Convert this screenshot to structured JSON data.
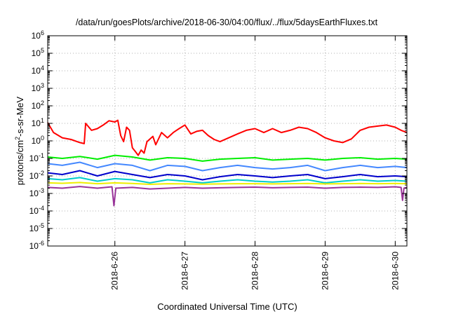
{
  "chart_data": {
    "type": "line",
    "title": "/data/run/goesPlots/archive/2018-06-30/04:00/flux/../flux/5daysEarthFluxes.txt",
    "xlabel": "Coordinated Universal Time (UTC)",
    "ylabel": {
      "base": "protons/cm",
      "sup": "2",
      "tail": "-s-sr-MeV"
    },
    "yscale": "log",
    "ylim": [
      1e-06,
      1000000.0
    ],
    "y_ticks": [
      {
        "base": "10",
        "exp": "-6"
      },
      {
        "base": "10",
        "exp": "-5"
      },
      {
        "base": "10",
        "exp": "-4"
      },
      {
        "base": "10",
        "exp": "-3"
      },
      {
        "base": "10",
        "exp": "-2"
      },
      {
        "base": "10",
        "exp": "-1"
      },
      {
        "base": "10",
        "exp": "0"
      },
      {
        "base": "10",
        "exp": "1"
      },
      {
        "base": "10",
        "exp": "2"
      },
      {
        "base": "10",
        "exp": "3"
      },
      {
        "base": "10",
        "exp": "4"
      },
      {
        "base": "10",
        "exp": "5"
      },
      {
        "base": "10",
        "exp": "6"
      }
    ],
    "xlim": [
      "2018-06-25 01:00",
      "2018-06-30 04:00"
    ],
    "x_ticks": [
      "2018-6-26",
      "2018-6-27",
      "2018-6-28",
      "2018-6-29",
      "2018-6-30"
    ],
    "grid": true,
    "series": [
      {
        "color": "#ff0000",
        "x": [
          "2018-06-25 01:00",
          "2018-06-25 03:00",
          "2018-06-25 06:00",
          "2018-06-25 09:00",
          "2018-06-25 12:00",
          "2018-06-25 13:30",
          "2018-06-25 14:00",
          "2018-06-25 16:00",
          "2018-06-25 18:00",
          "2018-06-25 20:00",
          "2018-06-25 22:00",
          "2018-06-26 00:00",
          "2018-06-26 01:00",
          "2018-06-26 02:00",
          "2018-06-26 03:00",
          "2018-06-26 04:00",
          "2018-06-26 05:00",
          "2018-06-26 06:00",
          "2018-06-26 07:00",
          "2018-06-26 08:00",
          "2018-06-26 09:00",
          "2018-06-26 10:00",
          "2018-06-26 11:00",
          "2018-06-26 13:00",
          "2018-06-26 14:00",
          "2018-06-26 16:00",
          "2018-06-26 18:00",
          "2018-06-26 20:00",
          "2018-06-26 22:00",
          "2018-06-27 00:00",
          "2018-06-27 02:00",
          "2018-06-27 04:00",
          "2018-06-27 06:00",
          "2018-06-27 08:00",
          "2018-06-27 10:00",
          "2018-06-27 12:00",
          "2018-06-27 15:00",
          "2018-06-27 18:00",
          "2018-06-27 21:00",
          "2018-06-28 00:00",
          "2018-06-28 03:00",
          "2018-06-28 06:00",
          "2018-06-28 09:00",
          "2018-06-28 12:00",
          "2018-06-28 15:00",
          "2018-06-28 18:00",
          "2018-06-28 21:00",
          "2018-06-29 00:00",
          "2018-06-29 03:00",
          "2018-06-29 06:00",
          "2018-06-29 09:00",
          "2018-06-29 12:00",
          "2018-06-29 15:00",
          "2018-06-29 18:00",
          "2018-06-29 21:00",
          "2018-06-30 00:00",
          "2018-06-30 02:00",
          "2018-06-30 04:00"
        ],
        "y": [
          11,
          3,
          1.5,
          1.2,
          0.8,
          0.7,
          10,
          4,
          5,
          8,
          14,
          12,
          15,
          2,
          0.9,
          6,
          4,
          0.4,
          0.25,
          0.15,
          0.3,
          0.2,
          0.9,
          1.8,
          0.6,
          3,
          1.5,
          3,
          5,
          8,
          2.5,
          3.5,
          4,
          2,
          1.2,
          0.9,
          1.5,
          2.5,
          4,
          5,
          3,
          5,
          3,
          4,
          6,
          5,
          3,
          1.5,
          1,
          0.8,
          1.3,
          4,
          6,
          7,
          8,
          6,
          4,
          3
        ]
      },
      {
        "color": "#00ee00",
        "x": [
          "2018-06-25 01:00",
          "2018-06-25 06:00",
          "2018-06-25 12:00",
          "2018-06-25 18:00",
          "2018-06-26 00:00",
          "2018-06-26 06:00",
          "2018-06-26 12:00",
          "2018-06-26 18:00",
          "2018-06-27 00:00",
          "2018-06-27 06:00",
          "2018-06-27 12:00",
          "2018-06-27 18:00",
          "2018-06-28 00:00",
          "2018-06-28 06:00",
          "2018-06-28 12:00",
          "2018-06-28 18:00",
          "2018-06-29 00:00",
          "2018-06-29 06:00",
          "2018-06-29 12:00",
          "2018-06-29 18:00",
          "2018-06-30 00:00",
          "2018-06-30 04:00"
        ],
        "y": [
          0.12,
          0.1,
          0.13,
          0.09,
          0.15,
          0.12,
          0.08,
          0.11,
          0.1,
          0.07,
          0.09,
          0.1,
          0.11,
          0.08,
          0.09,
          0.1,
          0.08,
          0.1,
          0.11,
          0.09,
          0.1,
          0.09
        ]
      },
      {
        "color": "#4488ff",
        "x": [
          "2018-06-25 01:00",
          "2018-06-25 06:00",
          "2018-06-25 12:00",
          "2018-06-25 18:00",
          "2018-06-26 00:00",
          "2018-06-26 06:00",
          "2018-06-26 12:00",
          "2018-06-26 18:00",
          "2018-06-27 00:00",
          "2018-06-27 06:00",
          "2018-06-27 12:00",
          "2018-06-27 18:00",
          "2018-06-28 00:00",
          "2018-06-28 06:00",
          "2018-06-28 12:00",
          "2018-06-28 18:00",
          "2018-06-29 00:00",
          "2018-06-29 06:00",
          "2018-06-29 12:00",
          "2018-06-29 18:00",
          "2018-06-30 00:00",
          "2018-06-30 04:00"
        ],
        "y": [
          0.05,
          0.04,
          0.06,
          0.03,
          0.05,
          0.04,
          0.02,
          0.04,
          0.035,
          0.02,
          0.03,
          0.04,
          0.03,
          0.025,
          0.03,
          0.04,
          0.02,
          0.03,
          0.04,
          0.03,
          0.035,
          0.03
        ]
      },
      {
        "color": "#0000cc",
        "x": [
          "2018-06-25 01:00",
          "2018-06-25 06:00",
          "2018-06-25 12:00",
          "2018-06-25 18:00",
          "2018-06-26 00:00",
          "2018-06-26 06:00",
          "2018-06-26 12:00",
          "2018-06-26 18:00",
          "2018-06-27 00:00",
          "2018-06-27 06:00",
          "2018-06-27 12:00",
          "2018-06-27 18:00",
          "2018-06-28 00:00",
          "2018-06-28 06:00",
          "2018-06-28 12:00",
          "2018-06-28 18:00",
          "2018-06-29 00:00",
          "2018-06-29 06:00",
          "2018-06-29 12:00",
          "2018-06-29 18:00",
          "2018-06-30 00:00",
          "2018-06-30 04:00"
        ],
        "y": [
          0.015,
          0.012,
          0.02,
          0.01,
          0.018,
          0.012,
          0.008,
          0.012,
          0.01,
          0.006,
          0.009,
          0.012,
          0.01,
          0.008,
          0.01,
          0.012,
          0.007,
          0.009,
          0.012,
          0.009,
          0.01,
          0.009
        ]
      },
      {
        "color": "#00cccc",
        "x": [
          "2018-06-25 01:00",
          "2018-06-25 06:00",
          "2018-06-25 12:00",
          "2018-06-25 18:00",
          "2018-06-26 00:00",
          "2018-06-26 06:00",
          "2018-06-26 12:00",
          "2018-06-26 18:00",
          "2018-06-27 00:00",
          "2018-06-27 06:00",
          "2018-06-27 12:00",
          "2018-06-27 18:00",
          "2018-06-28 00:00",
          "2018-06-28 06:00",
          "2018-06-28 12:00",
          "2018-06-28 18:00",
          "2018-06-29 00:00",
          "2018-06-29 06:00",
          "2018-06-29 12:00",
          "2018-06-29 18:00",
          "2018-06-30 00:00",
          "2018-06-30 04:00"
        ],
        "y": [
          0.007,
          0.006,
          0.008,
          0.005,
          0.007,
          0.006,
          0.004,
          0.006,
          0.005,
          0.004,
          0.005,
          0.006,
          0.005,
          0.0045,
          0.005,
          0.006,
          0.004,
          0.005,
          0.006,
          0.005,
          0.0055,
          0.005
        ]
      },
      {
        "color": "#eeee00",
        "x": [
          "2018-06-25 01:00",
          "2018-06-25 06:00",
          "2018-06-25 12:00",
          "2018-06-25 18:00",
          "2018-06-26 00:00",
          "2018-06-26 06:00",
          "2018-06-26 12:00",
          "2018-06-26 18:00",
          "2018-06-27 00:00",
          "2018-06-27 06:00",
          "2018-06-27 12:00",
          "2018-06-27 18:00",
          "2018-06-28 00:00",
          "2018-06-28 06:00",
          "2018-06-28 12:00",
          "2018-06-28 18:00",
          "2018-06-29 00:00",
          "2018-06-29 06:00",
          "2018-06-29 12:00",
          "2018-06-29 18:00",
          "2018-06-30 00:00",
          "2018-06-30 04:00"
        ],
        "y": [
          0.004,
          0.0038,
          0.0042,
          0.0036,
          0.004,
          0.0037,
          0.0033,
          0.0036,
          0.0035,
          0.0034,
          0.0035,
          0.0036,
          0.0036,
          0.0035,
          0.0036,
          0.0037,
          0.0035,
          0.0036,
          0.0037,
          0.0036,
          0.0037,
          0.0036
        ]
      },
      {
        "color": "#993399",
        "x": [
          "2018-06-25 01:00",
          "2018-06-25 06:00",
          "2018-06-25 12:00",
          "2018-06-25 18:00",
          "2018-06-25 23:00",
          "2018-06-25 23:40",
          "2018-06-26 00:20",
          "2018-06-26 06:00",
          "2018-06-26 12:00",
          "2018-06-26 18:00",
          "2018-06-27 00:00",
          "2018-06-27 06:00",
          "2018-06-27 12:00",
          "2018-06-27 18:00",
          "2018-06-28 00:00",
          "2018-06-28 06:00",
          "2018-06-28 12:00",
          "2018-06-28 18:00",
          "2018-06-29 00:00",
          "2018-06-29 06:00",
          "2018-06-29 12:00",
          "2018-06-29 18:00",
          "2018-06-30 00:00",
          "2018-06-30 02:00",
          "2018-06-30 02:30",
          "2018-06-30 03:00",
          "2018-06-30 04:00"
        ],
        "y": [
          0.0022,
          0.002,
          0.0025,
          0.002,
          0.0024,
          0.0002,
          0.002,
          0.0022,
          0.0018,
          0.002,
          0.0022,
          0.002,
          0.0021,
          0.0022,
          0.0023,
          0.0021,
          0.0022,
          0.0023,
          0.002,
          0.0022,
          0.0023,
          0.0022,
          0.0024,
          0.0022,
          0.0004,
          0.002,
          0.0022
        ]
      }
    ]
  }
}
